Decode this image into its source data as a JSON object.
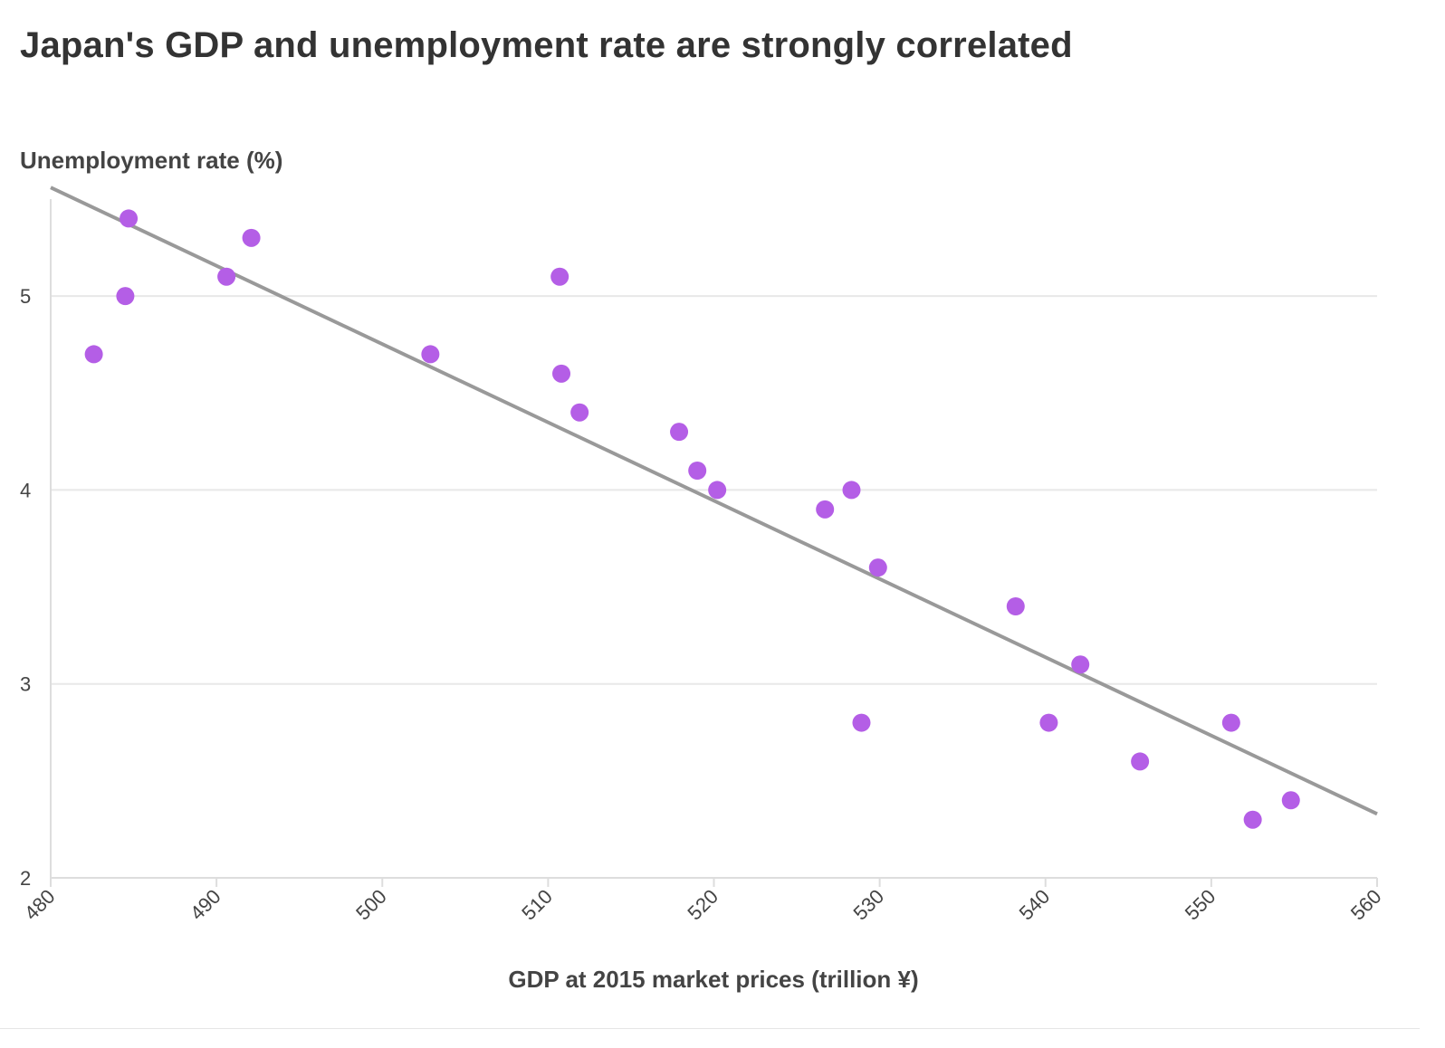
{
  "chart_data": {
    "type": "scatter",
    "title": "Japan's GDP and unemployment rate are strongly correlated",
    "xlabel": "GDP at 2015 market prices (trillion ¥)",
    "ylabel": "Unemployment rate (%)",
    "xlim": [
      480,
      560
    ],
    "ylim": [
      2,
      5.5
    ],
    "xticks": [
      480,
      490,
      500,
      510,
      520,
      530,
      540,
      550,
      560
    ],
    "yticks": [
      2,
      3,
      4,
      5
    ],
    "grid": true,
    "colors": {
      "points": "#b45ee6",
      "trendline": "#999999",
      "grid": "#e8e8e8"
    },
    "points": [
      {
        "x": 482.6,
        "y": 4.7
      },
      {
        "x": 484.5,
        "y": 5.0
      },
      {
        "x": 484.7,
        "y": 5.4
      },
      {
        "x": 490.6,
        "y": 5.1
      },
      {
        "x": 492.1,
        "y": 5.3
      },
      {
        "x": 502.9,
        "y": 4.7
      },
      {
        "x": 510.7,
        "y": 5.1
      },
      {
        "x": 510.8,
        "y": 4.6
      },
      {
        "x": 511.9,
        "y": 4.4
      },
      {
        "x": 517.9,
        "y": 4.3
      },
      {
        "x": 519.0,
        "y": 4.1
      },
      {
        "x": 520.2,
        "y": 4.0
      },
      {
        "x": 526.7,
        "y": 3.9
      },
      {
        "x": 528.3,
        "y": 4.0
      },
      {
        "x": 528.9,
        "y": 2.8
      },
      {
        "x": 529.9,
        "y": 3.6
      },
      {
        "x": 538.2,
        "y": 3.4
      },
      {
        "x": 540.2,
        "y": 2.8
      },
      {
        "x": 542.1,
        "y": 3.1
      },
      {
        "x": 545.7,
        "y": 2.6
      },
      {
        "x": 551.2,
        "y": 2.8
      },
      {
        "x": 552.5,
        "y": 2.3
      },
      {
        "x": 554.8,
        "y": 2.4
      }
    ],
    "trendline": {
      "x": [
        480,
        560
      ],
      "y": [
        5.56,
        2.33
      ]
    }
  }
}
